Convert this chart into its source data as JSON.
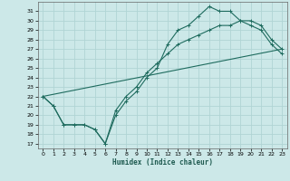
{
  "xlabel": "Humidex (Indice chaleur)",
  "bg_color": "#cce8e8",
  "grid_color": "#b0d4d4",
  "line_color": "#1e6b5e",
  "xlim": [
    -0.5,
    23.5
  ],
  "ylim": [
    16.5,
    32.0
  ],
  "xticks": [
    0,
    1,
    2,
    3,
    4,
    5,
    6,
    7,
    8,
    9,
    10,
    11,
    12,
    13,
    14,
    15,
    16,
    17,
    18,
    19,
    20,
    21,
    22,
    23
  ],
  "yticks": [
    17,
    18,
    19,
    20,
    21,
    22,
    23,
    24,
    25,
    26,
    27,
    28,
    29,
    30,
    31
  ],
  "line1_x": [
    0,
    1,
    2,
    3,
    4,
    5,
    6,
    7,
    8,
    9,
    10,
    11,
    12,
    13,
    14,
    15,
    16,
    17,
    18,
    19,
    20,
    21,
    22,
    23
  ],
  "line1_y": [
    22.0,
    21.0,
    19.0,
    19.0,
    19.0,
    18.5,
    17.0,
    20.0,
    21.5,
    22.5,
    24.0,
    25.0,
    27.5,
    29.0,
    29.5,
    30.5,
    31.5,
    31.0,
    31.0,
    30.0,
    29.5,
    29.0,
    27.5,
    26.5
  ],
  "line2_x": [
    0,
    23
  ],
  "line2_y": [
    22.0,
    27.0
  ],
  "line3_x": [
    0,
    1,
    2,
    3,
    4,
    5,
    6,
    7,
    8,
    9,
    10,
    11,
    12,
    13,
    14,
    15,
    16,
    17,
    18,
    19,
    20,
    21,
    22,
    23
  ],
  "line3_y": [
    22.0,
    21.0,
    19.0,
    19.0,
    19.0,
    18.5,
    17.0,
    20.5,
    22.0,
    23.0,
    24.5,
    25.5,
    26.5,
    27.5,
    28.0,
    28.5,
    29.0,
    29.5,
    29.5,
    30.0,
    30.0,
    29.5,
    28.0,
    27.0
  ]
}
